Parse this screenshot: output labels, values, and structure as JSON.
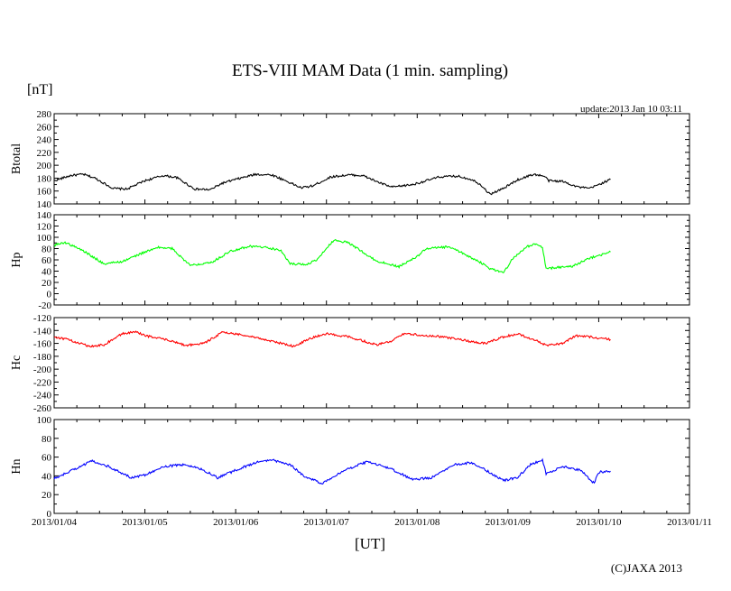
{
  "chart_data": {
    "type": "line",
    "title": "ETS-VIII MAM Data (1 min. sampling)",
    "unit_label": "[nT]",
    "update": "update:2013 Jan 10 03:11",
    "xlabel": "[UT]",
    "credit": "(C)JAXA 2013",
    "x_ticks": [
      "2013/01/04",
      "2013/01/05",
      "2013/01/06",
      "2013/01/07",
      "2013/01/08",
      "2013/01/09",
      "2013/01/10",
      "2013/01/11"
    ],
    "x_range_days": [
      0,
      7
    ],
    "data_end_day": 6.13,
    "grid": false,
    "panels": [
      {
        "ylabel": "Btotal",
        "color": "#000000",
        "ylim": [
          140,
          280
        ],
        "yticks": [
          280,
          260,
          240,
          220,
          200,
          180,
          160,
          140
        ],
        "series": {
          "x": [
            0,
            0.18,
            0.32,
            0.45,
            0.65,
            0.8,
            1.0,
            1.2,
            1.35,
            1.55,
            1.72,
            1.85,
            2.0,
            2.22,
            2.4,
            2.55,
            2.72,
            2.85,
            3.05,
            3.25,
            3.4,
            3.6,
            3.72,
            3.95,
            4.25,
            4.45,
            4.6,
            4.7,
            4.8,
            4.95,
            5.1,
            5.28,
            5.4,
            5.45,
            5.6,
            5.78,
            5.9,
            6.13
          ],
          "y": [
            176,
            184,
            186,
            180,
            164,
            163,
            176,
            184,
            181,
            163,
            162,
            172,
            178,
            186,
            185,
            176,
            165,
            168,
            182,
            185,
            184,
            172,
            166,
            170,
            182,
            183,
            178,
            170,
            155,
            164,
            177,
            186,
            183,
            176,
            175,
            166,
            164,
            178
          ]
        }
      },
      {
        "ylabel": "Hp",
        "color": "#00ff00",
        "ylim": [
          -20,
          140
        ],
        "yticks": [
          140,
          120,
          100,
          80,
          60,
          40,
          20,
          0,
          -20
        ],
        "series": {
          "x": [
            0,
            0.12,
            0.3,
            0.55,
            0.75,
            1.0,
            1.15,
            1.3,
            1.5,
            1.75,
            1.95,
            2.15,
            2.35,
            2.5,
            2.6,
            2.78,
            2.9,
            3.05,
            3.1,
            3.25,
            3.55,
            3.8,
            4.0,
            4.1,
            4.35,
            4.55,
            4.7,
            4.8,
            4.95,
            5.05,
            5.2,
            5.3,
            5.38,
            5.42,
            5.55,
            5.7,
            5.9,
            6.13
          ],
          "y": [
            86,
            91,
            78,
            53,
            57,
            74,
            82,
            80,
            50,
            57,
            76,
            84,
            82,
            76,
            53,
            52,
            60,
            90,
            95,
            90,
            58,
            48,
            66,
            80,
            83,
            68,
            55,
            45,
            37,
            62,
            83,
            88,
            82,
            44,
            47,
            48,
            63,
            74
          ]
        }
      },
      {
        "ylabel": "Hc",
        "color": "#ff0000",
        "ylim": [
          -260,
          -120
        ],
        "yticks": [
          -120,
          -140,
          -160,
          -180,
          -200,
          -220,
          -240,
          -260
        ],
        "series": {
          "x": [
            0,
            0.12,
            0.4,
            0.55,
            0.75,
            0.9,
            1.0,
            1.2,
            1.45,
            1.65,
            1.85,
            2.1,
            2.35,
            2.5,
            2.65,
            2.8,
            3.0,
            3.25,
            3.55,
            3.7,
            3.85,
            4.05,
            4.3,
            4.5,
            4.75,
            4.95,
            5.1,
            5.3,
            5.42,
            5.6,
            5.75,
            5.9,
            6.13
          ],
          "y": [
            -150,
            -153,
            -165,
            -162,
            -145,
            -142,
            -148,
            -153,
            -163,
            -160,
            -143,
            -147,
            -155,
            -160,
            -165,
            -153,
            -145,
            -150,
            -162,
            -158,
            -145,
            -147,
            -150,
            -155,
            -160,
            -150,
            -145,
            -155,
            -163,
            -160,
            -148,
            -150,
            -154
          ]
        }
      },
      {
        "ylabel": "Hn",
        "color": "#0000ff",
        "ylim": [
          0,
          100
        ],
        "yticks": [
          100,
          80,
          60,
          40,
          20,
          0
        ],
        "series": {
          "x": [
            0,
            0.2,
            0.42,
            0.6,
            0.85,
            1.0,
            1.2,
            1.45,
            1.65,
            1.8,
            2.05,
            2.25,
            2.4,
            2.6,
            2.75,
            2.95,
            3.2,
            3.45,
            3.7,
            3.95,
            4.15,
            4.4,
            4.6,
            4.72,
            4.95,
            5.1,
            5.25,
            5.38,
            5.42,
            5.6,
            5.8,
            5.95,
            6.0,
            6.13
          ],
          "y": [
            37,
            46,
            56,
            50,
            38,
            41,
            50,
            52,
            46,
            38,
            48,
            55,
            57,
            52,
            40,
            32,
            46,
            55,
            48,
            36,
            38,
            52,
            54,
            48,
            35,
            38,
            52,
            57,
            42,
            50,
            46,
            32,
            44,
            45
          ]
        }
      }
    ]
  }
}
